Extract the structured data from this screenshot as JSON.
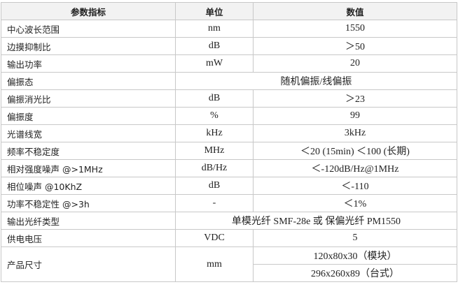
{
  "header": [
    "参数指标",
    "单位",
    "数值"
  ],
  "rows": [
    {
      "param": "中心波长范围",
      "unit": "nm",
      "value": "1550"
    },
    {
      "param": "边摸抑制比",
      "unit": "dB",
      "value": "＞50"
    },
    {
      "param": "输出功率",
      "unit": "mW",
      "value": "20"
    },
    {
      "param": "偏振态",
      "value": "随机偏振/线偏振"
    },
    {
      "param": "偏振消光比",
      "unit": "dB",
      "value": "＞23"
    },
    {
      "param": "偏振度",
      "unit": "%",
      "value": "99"
    },
    {
      "param": "光谱线宽",
      "unit": "kHz",
      "value": "3kHz"
    },
    {
      "param": "频率不稳定度",
      "unit": "MHz",
      "value": "＜20 (15min)  ＜100 (长期)"
    },
    {
      "param": "相对强度噪声 @>1MHz",
      "unit": "dB/Hz",
      "value": "＜-120dB/Hz@1MHz"
    },
    {
      "param": "相位噪声  @10KhZ",
      "unit": "dB",
      "value": "＜-110"
    },
    {
      "param": "功率不稳定性 @>3h",
      "unit": "-",
      "value": "＜1%"
    },
    {
      "param": "输出光纤类型",
      "value": "单模光纤 SMF-28e 或 保偏光纤 PM1550"
    },
    {
      "param": "供电电压",
      "unit": "VDC",
      "value": "5"
    }
  ],
  "size": {
    "param": "产品尺寸",
    "unit": "mm",
    "values": [
      "120x80x30（模块）",
      "296x260x89（台式）"
    ]
  }
}
